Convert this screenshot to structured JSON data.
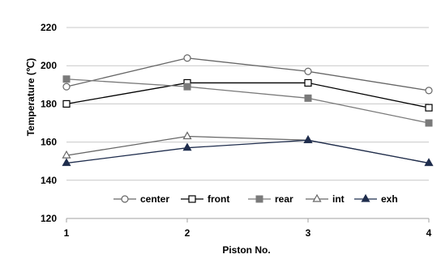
{
  "chart_data": {
    "type": "line",
    "x": [
      1,
      2,
      3,
      4
    ],
    "xticks": [
      "1",
      "2",
      "3",
      "4"
    ],
    "yticks": [
      "120",
      "140",
      "160",
      "180",
      "200",
      "220"
    ],
    "ylim": [
      120,
      220
    ],
    "xlim": [
      1,
      4
    ],
    "xlabel": "Piston No.",
    "ylabel": "Temperature  (℃)",
    "grid": "horizontal",
    "legend_position": "bottom-center",
    "series": [
      {
        "name": "center",
        "values": [
          189,
          204,
          197,
          187
        ],
        "marker": "circle-open",
        "color": "#666666"
      },
      {
        "name": "front",
        "values": [
          180,
          191,
          191,
          178
        ],
        "marker": "square-open",
        "color": "#000000"
      },
      {
        "name": "rear",
        "values": [
          193,
          189,
          183,
          170
        ],
        "marker": "square-filled",
        "color": "#7a7a7a"
      },
      {
        "name": "int",
        "values": [
          153,
          163,
          161,
          149
        ],
        "marker": "triangle-open",
        "color": "#666666"
      },
      {
        "name": "exh",
        "values": [
          149,
          157,
          161,
          149
        ],
        "marker": "triangle-filled",
        "color": "#1f2d4d"
      }
    ]
  }
}
